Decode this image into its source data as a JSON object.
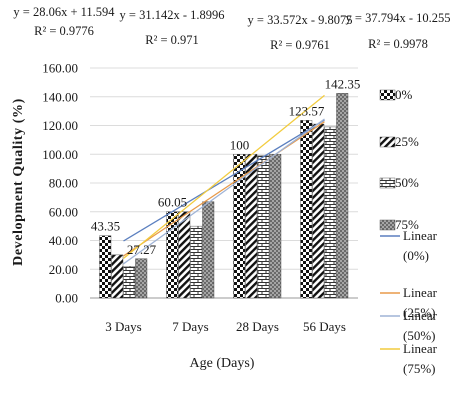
{
  "chart_data": {
    "type": "bar",
    "title": "",
    "xlabel": "Age (Days)",
    "ylabel": "Development Quality  (%)",
    "ylim": [
      0,
      160
    ],
    "yticks": [
      "0.00",
      "20.00",
      "40.00",
      "60.00",
      "80.00",
      "100.00",
      "120.00",
      "140.00",
      "160.00"
    ],
    "grid": true,
    "legend_position": "right",
    "categories": [
      "3 Days",
      "7 Days",
      "28 Days",
      "56 Days"
    ],
    "series": [
      {
        "name": "0%",
        "values": [
          43.35,
          60.05,
          100,
          123.57
        ],
        "pattern": "checker",
        "color": "#111111"
      },
      {
        "name": "25%",
        "values": [
          30,
          60,
          100,
          121
        ],
        "pattern": "diagonal",
        "color": "#111111"
      },
      {
        "name": "50%",
        "values": [
          22,
          50,
          99,
          119
        ],
        "pattern": "brick",
        "color": "#444444"
      },
      {
        "name": "75%",
        "values": [
          27.27,
          67,
          100,
          142.35
        ],
        "pattern": "dots",
        "color": "#555555"
      }
    ],
    "data_labels": [
      {
        "series": 0,
        "category": 0,
        "text": "43.35"
      },
      {
        "series": 0,
        "category": 1,
        "text": "60.05"
      },
      {
        "series": 0,
        "category": 2,
        "text": "100"
      },
      {
        "series": 0,
        "category": 3,
        "text": "123.57"
      },
      {
        "series": 3,
        "category": 0,
        "text": "27.27"
      },
      {
        "series": 3,
        "category": 3,
        "text": "142.35"
      }
    ],
    "trendlines": [
      {
        "name": "Linear\n(0%)",
        "slope": 28.06,
        "intercept": 11.594,
        "color": "#5b7fbf",
        "equation": "y = 28.06x + 11.594",
        "r2": "R² = 0.9776"
      },
      {
        "name": "Linear\n(25%)",
        "slope": 31.142,
        "intercept": -1.8996,
        "color": "#e89a4a",
        "equation": "y = 31.142x - 1.8996",
        "r2": "R² = 0.971"
      },
      {
        "name": "Linear\n(50%)",
        "slope": 33.572,
        "intercept": -9.8075,
        "color": "#9fb3d6",
        "equation": "y = 33.572x - 9.8075",
        "r2": "R² = 0.9761"
      },
      {
        "name": "Linear\n(75%)",
        "slope": 37.794,
        "intercept": -10.255,
        "color": "#f2cc3f",
        "equation": "y = 37.794x - 10.255",
        "r2": "R² = 0.9978"
      }
    ]
  }
}
